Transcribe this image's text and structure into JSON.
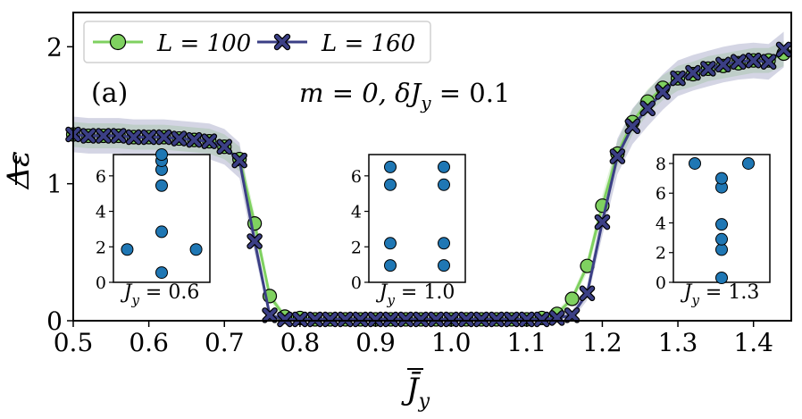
{
  "chart_data": {
    "type": "line",
    "panel_label": "(a)",
    "annotation": "m = 0, δJ",
    "annotation_sub": "y",
    "annotation_tail": " = 0.1",
    "xlabel": "J̄",
    "xlabel_sub": "y",
    "ylabel": "Δε",
    "xlim": [
      0.5,
      1.45
    ],
    "ylim": [
      0,
      2.25
    ],
    "xticks": [
      "0.5",
      "0.6",
      "0.7",
      "0.8",
      "0.9",
      "1.0",
      "1.1",
      "1.2",
      "1.3",
      "1.4"
    ],
    "yticks": [
      "0",
      "1",
      "2"
    ],
    "x": [
      0.5,
      0.52,
      0.54,
      0.56,
      0.58,
      0.6,
      0.62,
      0.64,
      0.66,
      0.68,
      0.7,
      0.72,
      0.74,
      0.76,
      0.78,
      0.8,
      0.82,
      0.84,
      0.86,
      0.88,
      0.9,
      0.92,
      0.94,
      0.96,
      0.98,
      1.0,
      1.02,
      1.04,
      1.06,
      1.08,
      1.1,
      1.12,
      1.14,
      1.16,
      1.18,
      1.2,
      1.22,
      1.24,
      1.26,
      1.28,
      1.3,
      1.32,
      1.34,
      1.36,
      1.38,
      1.4,
      1.42,
      1.44
    ],
    "series": [
      {
        "name": "L = 100",
        "color": "#7fd160",
        "marker": "circle",
        "values": [
          1.36,
          1.35,
          1.35,
          1.35,
          1.34,
          1.34,
          1.34,
          1.33,
          1.32,
          1.31,
          1.27,
          1.18,
          0.71,
          0.18,
          0.03,
          0.02,
          0.01,
          0.01,
          0.01,
          0.01,
          0.01,
          0.01,
          0.01,
          0.01,
          0.01,
          0.01,
          0.01,
          0.01,
          0.01,
          0.01,
          0.01,
          0.02,
          0.05,
          0.16,
          0.4,
          0.84,
          1.22,
          1.45,
          1.6,
          1.7,
          1.77,
          1.8,
          1.84,
          1.86,
          1.88,
          1.9,
          1.9,
          1.95
        ],
        "band": 0.07
      },
      {
        "name": "L = 160",
        "color": "#3b3f85",
        "marker": "x",
        "values": [
          1.36,
          1.35,
          1.35,
          1.35,
          1.34,
          1.34,
          1.34,
          1.33,
          1.32,
          1.31,
          1.27,
          1.17,
          0.58,
          0.04,
          0.01,
          0.01,
          0.01,
          0.01,
          0.01,
          0.01,
          0.01,
          0.01,
          0.01,
          0.01,
          0.01,
          0.01,
          0.01,
          0.01,
          0.01,
          0.01,
          0.01,
          0.01,
          0.02,
          0.04,
          0.2,
          0.72,
          1.2,
          1.42,
          1.55,
          1.67,
          1.77,
          1.81,
          1.84,
          1.87,
          1.89,
          1.9,
          1.89,
          1.98
        ],
        "band": 0.1
      }
    ],
    "insets": [
      {
        "label": "J",
        "label_sub": "y",
        "label_tail": " = 0.6",
        "yticks": [
          "0",
          "2",
          "4",
          "6"
        ],
        "ylim": [
          0,
          7.2
        ],
        "x": [
          0.5,
          1.0,
          1.5
        ],
        "xlim": [
          0.3,
          1.7
        ],
        "points": [
          [
            1.0,
            0.55
          ],
          [
            0.5,
            1.85
          ],
          [
            1.5,
            1.85
          ],
          [
            1.0,
            2.85
          ],
          [
            1.0,
            5.45
          ],
          [
            1.0,
            6.35
          ],
          [
            1.0,
            6.85
          ],
          [
            1.0,
            7.2
          ]
        ]
      },
      {
        "label": "J",
        "label_sub": "y",
        "label_tail": " = 1.0",
        "yticks": [
          "0",
          "2",
          "4",
          "6"
        ],
        "ylim": [
          0,
          7.2
        ],
        "xlim": [
          0.6,
          2.4
        ],
        "points": [
          [
            1.0,
            0.95
          ],
          [
            2.0,
            0.95
          ],
          [
            1.0,
            2.2
          ],
          [
            2.0,
            2.2
          ],
          [
            1.0,
            5.5
          ],
          [
            2.0,
            5.5
          ],
          [
            1.0,
            6.5
          ],
          [
            2.0,
            6.5
          ]
        ]
      },
      {
        "label": "J",
        "label_sub": "y",
        "label_tail": " = 1.3",
        "yticks": [
          "0",
          "2",
          "4",
          "6",
          "8"
        ],
        "ylim": [
          0,
          8.6
        ],
        "xlim": [
          0.6,
          2.4
        ],
        "points": [
          [
            1.5,
            0.3
          ],
          [
            1.5,
            2.2
          ],
          [
            1.5,
            2.9
          ],
          [
            1.5,
            3.9
          ],
          [
            1.5,
            6.4
          ],
          [
            1.5,
            7.0
          ],
          [
            1.0,
            8.0
          ],
          [
            2.0,
            8.0
          ]
        ]
      }
    ]
  }
}
